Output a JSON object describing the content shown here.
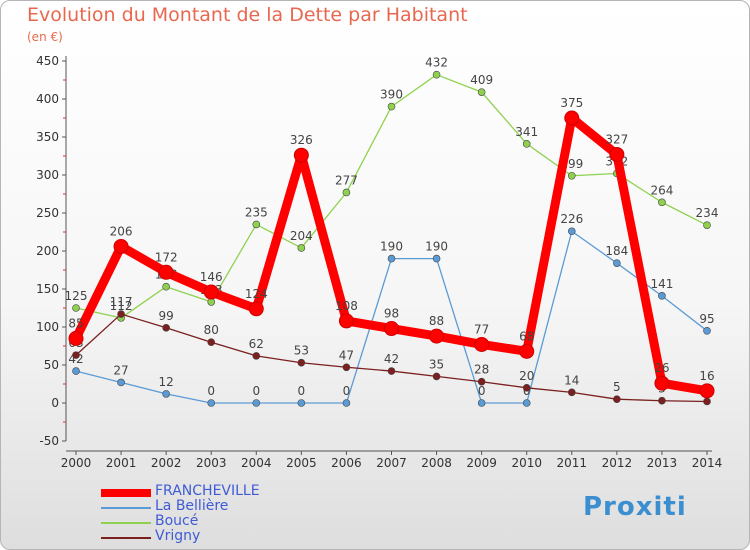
{
  "title": "Evolution du Montant de la Dette par Habitant",
  "unit": "(en €)",
  "brand": "Proxiti",
  "chart_data": {
    "type": "line",
    "title": "Evolution du Montant de la Dette par Habitant",
    "ylabel": "(en €)",
    "x": [
      2000,
      2001,
      2002,
      2003,
      2004,
      2005,
      2006,
      2007,
      2008,
      2009,
      2010,
      2011,
      2012,
      2013,
      2014
    ],
    "ylim": [
      -50,
      450
    ],
    "yticks": [
      -50,
      0,
      50,
      100,
      150,
      200,
      250,
      300,
      350,
      400,
      450
    ],
    "grid": false,
    "legend_position": "bottom-left",
    "series": [
      {
        "name": "FRANCHEVILLE",
        "color": "#ff0000",
        "values": [
          85,
          206,
          172,
          146,
          124,
          326,
          108,
          98,
          88,
          77,
          68,
          375,
          327,
          26,
          16
        ]
      },
      {
        "name": "La Bellière",
        "color": "#5b9bd5",
        "values": [
          42,
          27,
          12,
          0,
          0,
          0,
          0,
          190,
          190,
          0,
          0,
          226,
          184,
          141,
          95
        ]
      },
      {
        "name": "Boucé",
        "color": "#8fd14f",
        "values": [
          125,
          112,
          153,
          133,
          235,
          204,
          277,
          390,
          432,
          409,
          341,
          299,
          302,
          264,
          234
        ]
      },
      {
        "name": "Vrigny",
        "color": "#7b1f1f",
        "values": [
          63,
          117,
          99,
          80,
          62,
          53,
          47,
          42,
          35,
          28,
          20,
          14,
          5,
          3,
          2
        ]
      }
    ]
  }
}
